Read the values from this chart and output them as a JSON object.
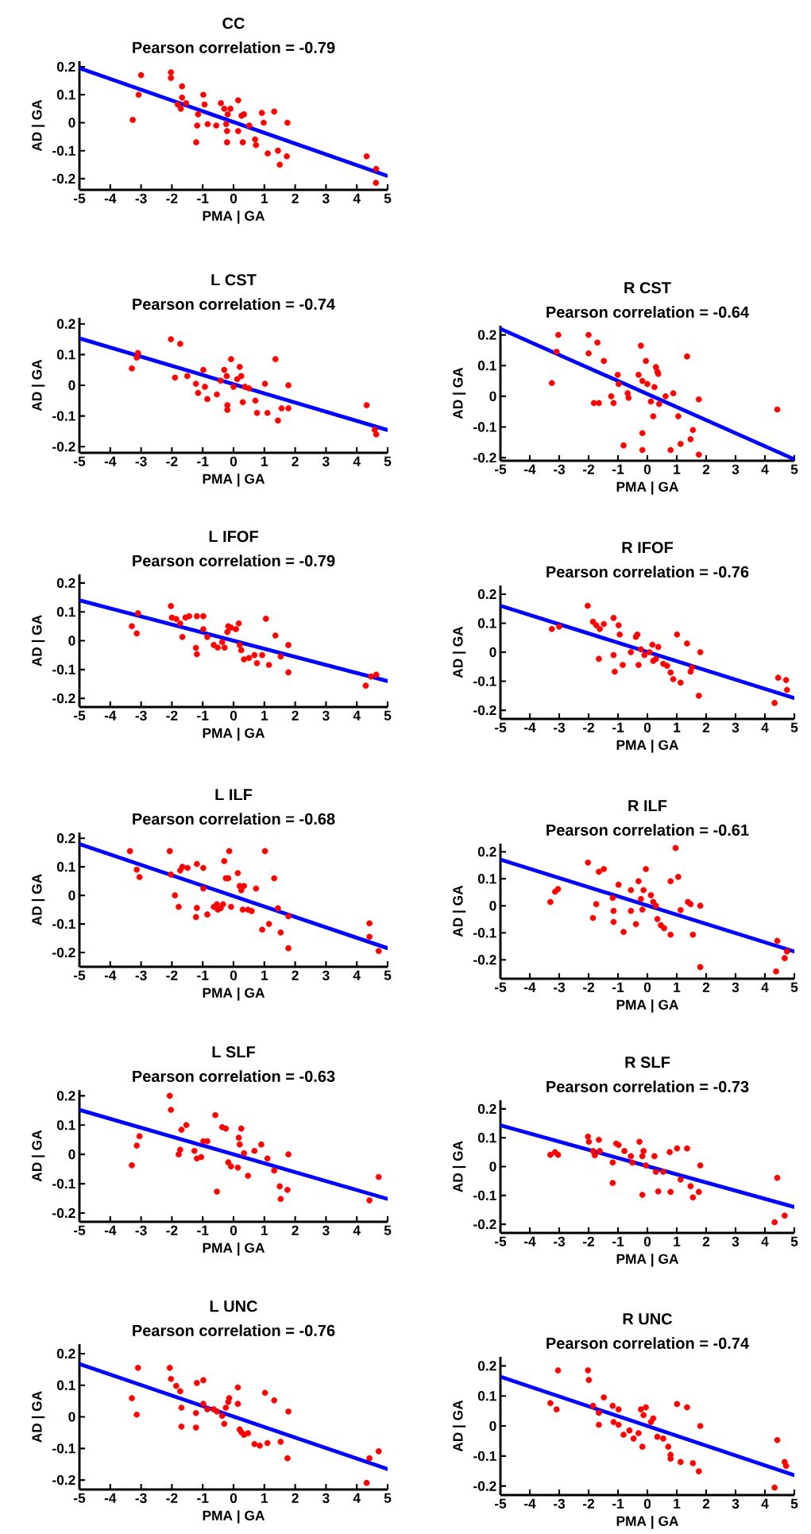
{
  "chart_data": [
    {
      "type": "scatter",
      "title": "CC",
      "subtitle": "Pearson correlation = -0.79",
      "xlabel": "PMA | GA",
      "ylabel": "AD | GA",
      "xlim": [
        -5,
        5
      ],
      "ylim": [
        -0.24,
        0.22
      ],
      "xticks": [
        -5,
        -4,
        -3,
        -2,
        -1,
        0,
        1,
        2,
        3,
        4,
        5
      ],
      "yticks": [
        -0.2,
        -0.1,
        0,
        0.1,
        0.2
      ],
      "series": [
        {
          "type": "scatter",
          "color": "#ff0000",
          "marker": "circle",
          "x": [
            -3.27,
            -3.0,
            -3.08,
            -2.03,
            -2.03,
            -1.67,
            -1.67,
            -1.81,
            -1.71,
            -1.54,
            -0.98,
            -0.94,
            -1.15,
            -1.18,
            -1.21,
            -0.84,
            -0.56,
            -0.41,
            -0.3,
            -0.19,
            -0.24,
            -0.21,
            -0.21,
            -0.1,
            0.15,
            0.15,
            0.26,
            0.34,
            0.3,
            0.51,
            0.7,
            0.73,
            0.92,
            0.98,
            1.11,
            1.32,
            1.44,
            1.5,
            1.73,
            1.75,
            4.32,
            4.63,
            4.62
          ],
          "values": [
            0.01,
            0.17,
            0.1,
            0.18,
            0.16,
            0.13,
            0.09,
            0.065,
            0.05,
            0.07,
            0.1,
            0.065,
            0.03,
            -0.01,
            -0.07,
            -0.005,
            -0.01,
            0.07,
            0.05,
            0.03,
            -0.005,
            -0.03,
            -0.07,
            0.05,
            0.08,
            -0.03,
            0.025,
            0.03,
            -0.07,
            -0.01,
            -0.06,
            -0.08,
            0.035,
            0,
            -0.11,
            0.04,
            -0.1,
            -0.15,
            -0.12,
            0,
            -0.12,
            -0.165,
            -0.215
          ]
        },
        {
          "type": "line",
          "color": "#0000ff",
          "x": [
            -5,
            5
          ],
          "values": [
            0.195,
            -0.19
          ]
        }
      ]
    },
    {
      "type": "scatter",
      "title": "L CST",
      "subtitle": "Pearson correlation = -0.74",
      "xlabel": "PMA | GA",
      "ylabel": "AD | GA",
      "xlim": [
        -5,
        5
      ],
      "ylim": [
        -0.22,
        0.22
      ],
      "xticks": [
        -5,
        -4,
        -3,
        -2,
        -1,
        0,
        1,
        2,
        3,
        4,
        5
      ],
      "yticks": [
        -0.2,
        -0.1,
        0,
        0.1,
        0.2
      ],
      "series": [
        {
          "type": "scatter",
          "color": "#ff0000",
          "marker": "circle",
          "x": [
            -3.3,
            -3.14,
            -3.1,
            -2.07,
            -2.03,
            -1.73,
            -1.9,
            -1.5,
            -1.22,
            -1.15,
            -0.98,
            -0.93,
            -0.85,
            -0.54,
            -0.42,
            -0.3,
            -0.22,
            -0.2,
            -0.2,
            -0.08,
            0,
            0.12,
            0.2,
            0.25,
            0.3,
            0.37,
            0.5,
            0.71,
            0.76,
            1.02,
            1.1,
            1.36,
            1.44,
            1.56,
            1.78,
            1.78,
            4.32,
            4.63,
            4.58
          ],
          "values": [
            0.055,
            0.09,
            0.105,
            null,
            0.15,
            0.135,
            0.025,
            0.03,
            0.005,
            -0.025,
            0.05,
            -0.005,
            -0.045,
            -0.03,
            0.015,
            0.05,
            0.03,
            -0.065,
            -0.08,
            0.085,
            -0.005,
            0.02,
            0.06,
            0.03,
            -0.055,
            -0.005,
            -0.01,
            -0.05,
            -0.09,
            0.005,
            -0.09,
            0.085,
            -0.115,
            -0.075,
            -0.075,
            0,
            -0.065,
            -0.16,
            -0.145
          ]
        },
        {
          "type": "line",
          "color": "#0000ff",
          "x": [
            -5,
            5
          ],
          "values": [
            0.153,
            -0.146
          ]
        }
      ]
    },
    {
      "type": "scatter",
      "title": "R CST",
      "subtitle": "Pearson correlation = -0.64",
      "xlabel": "PMA | GA",
      "ylabel": "AD | GA",
      "xlim": [
        -5,
        5
      ],
      "ylim": [
        -0.21,
        0.23
      ],
      "xticks": [
        -5,
        -4,
        -3,
        -2,
        -1,
        0,
        1,
        2,
        3,
        4,
        5
      ],
      "yticks": [
        -0.2,
        -0.1,
        0,
        0.1,
        0.2
      ],
      "series": [
        {
          "type": "scatter",
          "color": "#ff0000",
          "marker": "circle",
          "x": [
            -3.25,
            -3.03,
            -3.09,
            -2.0,
            -2.0,
            -1.82,
            -1.65,
            -1.7,
            -1.48,
            -1.23,
            -1.15,
            -1.01,
            -0.98,
            -0.81,
            -0.67,
            -0.64,
            -0.3,
            -0.22,
            -0.17,
            -0.17,
            -0.17,
            -0.05,
            0,
            0.12,
            0.2,
            0.24,
            0.29,
            0.34,
            0.37,
            0.4,
            0.62,
            0.79,
            0.88,
            1.05,
            1.13,
            1.35,
            1.47,
            1.55,
            1.75,
            1.75,
            4.42
          ],
          "values": [
            0.043,
            0.2,
            0.145,
            0.2,
            0.14,
            -0.022,
            -0.022,
            0.175,
            0.115,
            0,
            -0.022,
            0.07,
            0.04,
            -0.16,
            0.01,
            -0.005,
            0.07,
            0.165,
            0.05,
            -0.12,
            -0.175,
            0.115,
            0.04,
            -0.017,
            -0.065,
            0.03,
            0.095,
            0.08,
            0.073,
            -0.025,
            0,
            -0.175,
            0.01,
            -0.065,
            -0.155,
            0.13,
            -0.14,
            -0.11,
            -0.01,
            -0.19,
            -0.043
          ]
        },
        {
          "type": "line",
          "color": "#0000ff",
          "x": [
            -5,
            5
          ],
          "values": [
            0.22,
            -0.205
          ]
        }
      ]
    },
    {
      "type": "scatter",
      "title": "L IFOF",
      "subtitle": "Pearson correlation = -0.79",
      "xlabel": "PMA | GA",
      "ylabel": "AD | GA",
      "xlim": [
        -5,
        5
      ],
      "ylim": [
        -0.23,
        0.23
      ],
      "xticks": [
        -5,
        -4,
        -3,
        -2,
        -1,
        0,
        1,
        2,
        3,
        4,
        5
      ],
      "yticks": [
        -0.2,
        -0.1,
        0,
        0.1,
        0.2
      ],
      "series": [
        {
          "type": "scatter",
          "color": "#ff0000",
          "marker": "circle",
          "x": [
            -3.3,
            -3.14,
            -3.1,
            -2.03,
            -2.0,
            -1.86,
            -1.73,
            -1.66,
            -1.56,
            -1.44,
            -1.19,
            -0.98,
            -1.22,
            -1.19,
            -0.98,
            -0.85,
            -0.64,
            -0.51,
            -0.37,
            -0.29,
            -0.2,
            -0.17,
            -0.08,
            0.08,
            0.17,
            0.2,
            0.25,
            0.34,
            0.5,
            0.68,
            0.76,
            0.93,
            1.05,
            1.15,
            1.36,
            1.53,
            1.78,
            1.78,
            4.29,
            4.63,
            4.46
          ],
          "values": [
            0.05,
            0.025,
            0.095,
            0.12,
            0.08,
            0.075,
            0.06,
            0.013,
            0.08,
            0.085,
            0.085,
            0.085,
            -0.025,
            -0.047,
            0.04,
            0.013,
            -0.015,
            -0.024,
            -0.005,
            -0.024,
            0.03,
            0.05,
            0.045,
            0.04,
            0.06,
            -0.015,
            -0.033,
            -0.065,
            -0.06,
            -0.05,
            -0.078,
            -0.05,
            0.076,
            -0.084,
            0.018,
            -0.055,
            -0.015,
            -0.11,
            -0.156,
            -0.118,
            -0.124
          ]
        },
        {
          "type": "line",
          "color": "#0000ff",
          "x": [
            -5,
            5
          ],
          "values": [
            0.14,
            -0.14
          ]
        }
      ]
    },
    {
      "type": "scatter",
      "title": "R IFOF",
      "subtitle": "Pearson correlation = -0.76",
      "xlabel": "PMA | GA",
      "ylabel": "AD | GA",
      "xlim": [
        -5,
        5
      ],
      "ylim": [
        -0.23,
        0.23
      ],
      "xticks": [
        -5,
        -4,
        -3,
        -2,
        -1,
        0,
        1,
        2,
        3,
        4,
        5
      ],
      "yticks": [
        -0.2,
        -0.1,
        0,
        0.1,
        0.2
      ],
      "series": [
        {
          "type": "scatter",
          "color": "#ff0000",
          "marker": "circle",
          "x": [
            -3.25,
            -3.0,
            -2.03,
            -1.85,
            -1.74,
            -1.62,
            -1.65,
            -1.48,
            -1.15,
            -1.15,
            -1.11,
            -0.98,
            -0.94,
            -0.84,
            -0.56,
            -0.39,
            -0.34,
            -0.3,
            -0.22,
            -0.1,
            0.07,
            0.17,
            0.2,
            0.29,
            0.37,
            0.54,
            0.67,
            0.79,
            0.88,
            1.01,
            1.13,
            1.35,
            1.47,
            1.52,
            1.8,
            1.75,
            4.33,
            4.45,
            4.72,
            4.75
          ],
          "values": [
            0.08,
            0.088,
            0.16,
            0.105,
            0.093,
            0.08,
            -0.023,
            0.097,
            0.118,
            -0.01,
            -0.067,
            0.093,
            0.061,
            -0.044,
            0,
            0.053,
            0.061,
            -0.044,
            0.01,
            -0.01,
            0,
            0.026,
            -0.03,
            -0.023,
            0.018,
            -0.04,
            -0.047,
            -0.07,
            -0.093,
            0.061,
            -0.105,
            0.03,
            -0.067,
            -0.053,
            0,
            -0.15,
            -0.175,
            -0.088,
            -0.096,
            -0.13
          ]
        },
        {
          "type": "line",
          "color": "#0000ff",
          "x": [
            -5,
            5
          ],
          "values": [
            0.16,
            -0.158
          ]
        }
      ]
    },
    {
      "type": "scatter",
      "title": "L ILF",
      "subtitle": "Pearson correlation = -0.68",
      "xlabel": "PMA | GA",
      "ylabel": "AD | GA",
      "xlim": [
        -5,
        5
      ],
      "ylim": [
        -0.25,
        0.22
      ],
      "xticks": [
        -5,
        -4,
        -3,
        -2,
        -1,
        0,
        1,
        2,
        3,
        4,
        5
      ],
      "yticks": [
        -0.2,
        -0.1,
        0,
        0.1,
        0.2
      ],
      "series": [
        {
          "type": "scatter",
          "color": "#ff0000",
          "marker": "circle",
          "x": [
            -3.36,
            -3.14,
            -3.05,
            -2.07,
            -2.03,
            -1.9,
            -1.78,
            -1.73,
            -1.66,
            -1.56,
            -1.49,
            -1.19,
            -1.19,
            -1.22,
            -0.98,
            -0.98,
            -0.85,
            -0.64,
            -0.54,
            -0.51,
            -0.42,
            -0.34,
            -0.3,
            -0.25,
            -0.17,
            -0.14,
            -0.08,
            0.14,
            0.2,
            0.25,
            0.3,
            0.34,
            0.47,
            0.59,
            0.73,
            0.93,
            1.02,
            1.15,
            1.32,
            1.44,
            1.53,
            1.78,
            1.78,
            4.41,
            4.41,
            4.71
          ],
          "values": [
            0.155,
            0.09,
            0.064,
            0.155,
            0.073,
            0,
            -0.04,
            0.087,
            0.1,
            null,
            0.096,
            0.11,
            -0.044,
            -0.076,
            0.096,
            0.024,
            -0.067,
            -0.04,
            -0.031,
            -0.05,
            -0.045,
            -0.031,
            0.12,
            0.06,
            0.06,
            0.155,
            -0.04,
            0.078,
            0.033,
            0.018,
            -0.05,
            0.033,
            -0.05,
            -0.055,
            0.024,
            -0.12,
            0.155,
            -0.1,
            0.06,
            -0.045,
            -0.13,
            -0.073,
            -0.185,
            -0.098,
            -0.145,
            -0.195
          ]
        },
        {
          "type": "line",
          "color": "#0000ff",
          "x": [
            -5,
            5
          ],
          "values": [
            0.18,
            -0.185
          ]
        }
      ]
    },
    {
      "type": "scatter",
      "title": "R ILF",
      "subtitle": "Pearson correlation = -0.61",
      "xlabel": "PMA | GA",
      "ylabel": "AD | GA",
      "xlim": [
        -5,
        5
      ],
      "ylim": [
        -0.27,
        0.23
      ],
      "xticks": [
        -5,
        -4,
        -3,
        -2,
        -1,
        0,
        1,
        2,
        3,
        4,
        5
      ],
      "yticks": [
        -0.2,
        -0.1,
        0,
        0.1,
        0.2
      ],
      "series": [
        {
          "type": "scatter",
          "color": "#ff0000",
          "marker": "circle",
          "x": [
            -3.3,
            -3.14,
            -3.04,
            -2.02,
            -1.85,
            -1.74,
            -1.65,
            -1.48,
            -1.18,
            -1.15,
            -1.15,
            -0.98,
            -0.81,
            -0.56,
            -0.56,
            -0.39,
            -0.3,
            -0.22,
            -0.17,
            -0.13,
            -0.05,
            0.12,
            0.2,
            0.29,
            0.34,
            0.46,
            0.57,
            0.79,
            0.79,
            0.96,
            1.05,
            1.13,
            1.38,
            1.47,
            1.55,
            1.8,
            1.8,
            4.38,
            4.42,
            4.67,
            4.75
          ],
          "values": [
            0.014,
            0.052,
            0.062,
            0.16,
            -0.045,
            0.006,
            0.126,
            0.136,
            0.029,
            -0.019,
            -0.06,
            0.078,
            -0.097,
            -0.019,
            0.058,
            -0.068,
            0.091,
            0.025,
            -0.014,
            0.058,
            0.136,
            0.039,
            0.014,
            0,
            -0.049,
            -0.072,
            -0.083,
            -0.107,
            0.091,
            0.214,
            0.107,
            -0.016,
            0.014,
            0.006,
            -0.107,
            0,
            -0.227,
            -0.243,
            -0.13,
            -0.194,
            -0.169
          ]
        },
        {
          "type": "line",
          "color": "#0000ff",
          "x": [
            -5,
            5
          ],
          "values": [
            0.171,
            -0.169
          ]
        }
      ]
    },
    {
      "type": "scatter",
      "title": "L SLF",
      "subtitle": "Pearson correlation = -0.63",
      "xlabel": "PMA | GA",
      "ylabel": "AD | GA",
      "xlim": [
        -5,
        5
      ],
      "ylim": [
        -0.23,
        0.22
      ],
      "xticks": [
        -5,
        -4,
        -3,
        -2,
        -1,
        0,
        1,
        2,
        3,
        4,
        5
      ],
      "yticks": [
        -0.2,
        -0.1,
        0,
        0.1,
        0.2
      ],
      "series": [
        {
          "type": "scatter",
          "color": "#ff0000",
          "marker": "circle",
          "x": [
            -3.3,
            -3.14,
            -3.05,
            -2.07,
            -2.03,
            -1.78,
            -1.73,
            -1.69,
            -1.53,
            -1.27,
            -1.19,
            -1.05,
            -0.98,
            -0.85,
            -0.59,
            -0.54,
            -0.37,
            -0.25,
            -0.17,
            -0.08,
            0.14,
            0.17,
            0.2,
            0.25,
            0.34,
            0.47,
            0.68,
            0.9,
            1.1,
            1.32,
            1.5,
            1.53,
            1.75,
            1.78,
            4.41,
            4.71
          ],
          "values": [
            -0.037,
            0.03,
            0.062,
            0.2,
            0.152,
            0,
            0.016,
            0.084,
            0.1,
            0.012,
            -0.014,
            -0.009,
            0.045,
            0.045,
            0.134,
            -0.127,
            0.093,
            0.088,
            -0.027,
            -0.041,
            -0.045,
            0.057,
            0.034,
            0.088,
            0.004,
            -0.073,
            0.012,
            0.034,
            -0.014,
            -0.055,
            -0.109,
            -0.152,
            -0.121,
            0,
            -0.157,
            -0.077
          ]
        },
        {
          "type": "line",
          "color": "#0000ff",
          "x": [
            -5,
            5
          ],
          "values": [
            0.152,
            -0.152
          ]
        }
      ]
    },
    {
      "type": "scatter",
      "title": "R SLF",
      "subtitle": "Pearson correlation = -0.73",
      "xlabel": "PMA | GA",
      "ylabel": "AD | GA",
      "xlim": [
        -5,
        5
      ],
      "ylim": [
        -0.23,
        0.23
      ],
      "xticks": [
        -5,
        -4,
        -3,
        -2,
        -1,
        0,
        1,
        2,
        3,
        4,
        5
      ],
      "yticks": [
        -0.2,
        -0.1,
        0,
        0.1,
        0.2
      ],
      "series": [
        {
          "type": "scatter",
          "color": "#ff0000",
          "marker": "circle",
          "x": [
            -3.3,
            -3.14,
            -3.04,
            -2.02,
            -1.99,
            -1.85,
            -1.79,
            -1.65,
            -1.62,
            -1.18,
            -1.18,
            -1.06,
            -0.98,
            -0.78,
            -0.56,
            -0.51,
            -0.27,
            -0.22,
            -0.17,
            -0.13,
            -0.17,
            -0.05,
            0.24,
            0.29,
            0.37,
            0.54,
            0.76,
            0.79,
            1.01,
            1.13,
            1.35,
            1.47,
            1.55,
            1.75,
            1.8,
            4.42,
            4.33,
            4.67
          ],
          "values": [
            0.041,
            0.05,
            0.041,
            0.104,
            0.086,
            0.054,
            0.039,
            0.093,
            0.054,
            0.014,
            -0.057,
            0.08,
            0.075,
            0.054,
            0.036,
            0.014,
            0.086,
            null,
            0.036,
            0.054,
            -0.098,
            0.004,
            0.036,
            -0.018,
            -0.086,
            -0.018,
            0.05,
            -0.088,
            0.063,
            -0.045,
            0.063,
            -0.068,
            -0.107,
            -0.088,
            0.004,
            -0.039,
            -0.193,
            -0.17
          ]
        },
        {
          "type": "line",
          "color": "#0000ff",
          "x": [
            -5,
            5
          ],
          "values": [
            0.143,
            -0.14
          ]
        }
      ]
    },
    {
      "type": "scatter",
      "title": "L UNC",
      "subtitle": "Pearson correlation = -0.76",
      "xlabel": "PMA | GA",
      "ylabel": "AD | GA",
      "xlim": [
        -5,
        5
      ],
      "ylim": [
        -0.23,
        0.23
      ],
      "xticks": [
        -5,
        -4,
        -3,
        -2,
        -1,
        0,
        1,
        2,
        3,
        4,
        5
      ],
      "yticks": [
        -0.2,
        -0.1,
        0,
        0.1,
        0.2
      ],
      "series": [
        {
          "type": "scatter",
          "color": "#ff0000",
          "marker": "circle",
          "x": [
            -3.3,
            -3.14,
            -3.1,
            -2.07,
            -2.03,
            -1.86,
            -1.73,
            -1.69,
            -1.69,
            -1.22,
            -1.22,
            -1.19,
            -0.98,
            -0.98,
            -0.85,
            -0.64,
            -0.54,
            -0.37,
            -0.3,
            -0.25,
            -0.17,
            -0.14,
            0.14,
            0.14,
            0.2,
            0.25,
            0.34,
            0.47,
            0.68,
            0.85,
            1.02,
            1.1,
            1.32,
            1.53,
            1.75,
            1.78,
            4.41,
            4.71,
            4.32
          ],
          "values": [
            0.059,
            0.007,
            0.155,
            0.155,
            0.12,
            0.098,
            0.081,
            0.029,
            -0.031,
            0.012,
            -0.034,
            0.107,
            0.116,
            0.041,
            0.024,
            0.024,
            0.017,
            0.003,
            -0.022,
            0.029,
            0.047,
            0.059,
            0.093,
            0.041,
            -0.04,
            -0.048,
            -0.057,
            -0.052,
            -0.086,
            -0.091,
            0.076,
            -0.083,
            0.052,
            -0.079,
            -0.131,
            0.017,
            -0.131,
            -0.109,
            -0.209
          ]
        },
        {
          "type": "line",
          "color": "#0000ff",
          "x": [
            -5,
            5
          ],
          "values": [
            0.167,
            -0.165
          ]
        }
      ]
    },
    {
      "type": "scatter",
      "title": "R UNC",
      "subtitle": "Pearson correlation = -0.74",
      "xlabel": "PMA | GA",
      "ylabel": "AD | GA",
      "xlim": [
        -5,
        5
      ],
      "ylim": [
        -0.23,
        0.23
      ],
      "xticks": [
        -5,
        -4,
        -3,
        -2,
        -1,
        0,
        1,
        2,
        3,
        4,
        5
      ],
      "yticks": [
        -0.2,
        -0.1,
        0,
        0.1,
        0.2
      ],
      "series": [
        {
          "type": "scatter",
          "color": "#ff0000",
          "marker": "circle",
          "x": [
            -3.3,
            -3.04,
            -3.09,
            -2.02,
            -1.99,
            -1.85,
            -1.65,
            -1.65,
            -1.48,
            -1.18,
            -1.15,
            -0.98,
            -0.98,
            -0.81,
            -0.61,
            -0.47,
            -0.3,
            -0.22,
            -0.17,
            -0.13,
            -0.05,
            0.12,
            0.2,
            0.34,
            0.54,
            0.71,
            0.79,
            0.79,
            1.01,
            1.13,
            1.35,
            1.55,
            1.75,
            1.8,
            4.42,
            4.33,
            4.67,
            4.72
          ],
          "values": [
            0.076,
            0.185,
            0.055,
            0.185,
            0.153,
            0.067,
            0.044,
            0.004,
            0.095,
            0.067,
            0.013,
            0.055,
            0.004,
            -0.029,
            -0.015,
            -0.042,
            -0.024,
            0.055,
            -0.069,
            0.036,
            0.062,
            0.013,
            0.025,
            -0.036,
            -0.042,
            -0.069,
            -0.096,
            -0.109,
            0.073,
            -0.12,
            0.062,
            -0.124,
            -0.151,
            0,
            -0.047,
            -0.205,
            -0.12,
            -0.133
          ]
        },
        {
          "type": "line",
          "color": "#0000ff",
          "x": [
            -5,
            5
          ],
          "values": [
            0.164,
            -0.164
          ]
        }
      ]
    }
  ]
}
